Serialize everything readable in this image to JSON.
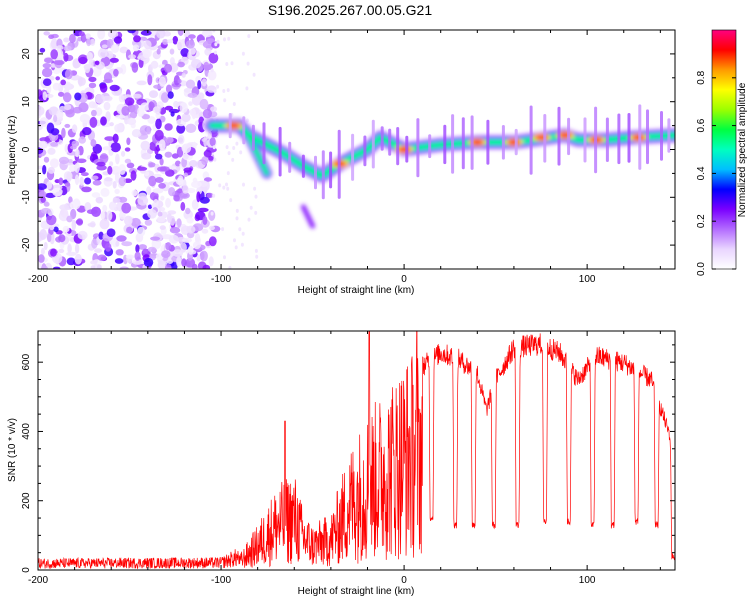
{
  "title": "S196.2025.267.00.05.G21",
  "chart_data": [
    {
      "type": "heatmap",
      "title": "S196.2025.267.00.05.G21",
      "xlabel": "Height of straight line (km)",
      "ylabel": "Frequency (Hz)",
      "xlim": [
        -200,
        148
      ],
      "ylim": [
        -25,
        25
      ],
      "xticks": [
        -200,
        -100,
        0,
        100
      ],
      "yticks": [
        -20,
        -10,
        0,
        10,
        20
      ],
      "colorbar": {
        "label": "Normalized spectral amplitude",
        "range": [
          0,
          1
        ],
        "ticks": [
          0.0,
          0.2,
          0.4,
          0.6,
          0.8
        ],
        "colors": [
          "#ffffff",
          "#e9d5ff",
          "#b36bff",
          "#7a00ff",
          "#0000ff",
          "#00bfff",
          "#00ffbf",
          "#00ff40",
          "#9cff00",
          "#ffff00",
          "#ff9a00",
          "#ff0000",
          "#ff0080"
        ]
      },
      "noise_region_x": [
        -200,
        -105
      ],
      "ridge": [
        {
          "x": -105,
          "y": 5.0
        },
        {
          "x": -90,
          "y": 5.0
        },
        {
          "x": -85,
          "y": 3.0
        },
        {
          "x": -75,
          "y": 1.0
        },
        {
          "x": -65,
          "y": -1.0
        },
        {
          "x": -55,
          "y": -3.5
        },
        {
          "x": -45,
          "y": -5.5
        },
        {
          "x": -35,
          "y": -3.0
        },
        {
          "x": -20,
          "y": 0.0
        },
        {
          "x": -13,
          "y": 2.5
        },
        {
          "x": -5,
          "y": 1.0
        },
        {
          "x": 0,
          "y": 0.0
        },
        {
          "x": 20,
          "y": 1.0
        },
        {
          "x": 40,
          "y": 1.5
        },
        {
          "x": 60,
          "y": 1.5
        },
        {
          "x": 80,
          "y": 2.5
        },
        {
          "x": 88,
          "y": 3.0
        },
        {
          "x": 95,
          "y": 2.0
        },
        {
          "x": 110,
          "y": 2.0
        },
        {
          "x": 125,
          "y": 2.5
        },
        {
          "x": 148,
          "y": 3.0
        }
      ],
      "branch": [
        {
          "x": -85,
          "y": 3.0
        },
        {
          "x": -80,
          "y": -1.0
        },
        {
          "x": -75,
          "y": -5.0
        }
      ],
      "hot_spots": [
        {
          "x": -93,
          "y": 5.0
        },
        {
          "x": -35,
          "y": -3.0
        },
        {
          "x": 0,
          "y": 0.0
        },
        {
          "x": 40,
          "y": 1.5
        },
        {
          "x": 60,
          "y": 1.5
        },
        {
          "x": 75,
          "y": 2.5
        },
        {
          "x": 88,
          "y": 3.0
        },
        {
          "x": 105,
          "y": 2.0
        },
        {
          "x": 128,
          "y": 2.5
        }
      ],
      "faint_track": [
        {
          "x": -55,
          "y": -12.0
        },
        {
          "x": -50,
          "y": -16.0
        }
      ]
    },
    {
      "type": "line",
      "xlabel": "Height of straight line (km)",
      "ylabel": "SNR (10 * v/v)",
      "xlim": [
        -200,
        148
      ],
      "ylim": [
        0,
        690
      ],
      "xticks": [
        -200,
        -100,
        0,
        100
      ],
      "yticks": [
        0,
        200,
        400,
        600
      ],
      "color": "#ff0000",
      "envelope": [
        {
          "x": -200,
          "y": 20
        },
        {
          "x": -100,
          "y": 22
        },
        {
          "x": -90,
          "y": 40
        },
        {
          "x": -80,
          "y": 120
        },
        {
          "x": -70,
          "y": 220
        },
        {
          "x": -60,
          "y": 260
        },
        {
          "x": -55,
          "y": 160
        },
        {
          "x": -50,
          "y": 120
        },
        {
          "x": -40,
          "y": 150
        },
        {
          "x": -30,
          "y": 320
        },
        {
          "x": -20,
          "y": 420
        },
        {
          "x": -10,
          "y": 480
        },
        {
          "x": 0,
          "y": 560
        },
        {
          "x": 10,
          "y": 600
        },
        {
          "x": 20,
          "y": 640
        },
        {
          "x": 30,
          "y": 620
        },
        {
          "x": 40,
          "y": 580
        },
        {
          "x": 45,
          "y": 470
        },
        {
          "x": 50,
          "y": 560
        },
        {
          "x": 60,
          "y": 655
        },
        {
          "x": 75,
          "y": 665
        },
        {
          "x": 85,
          "y": 640
        },
        {
          "x": 95,
          "y": 560
        },
        {
          "x": 105,
          "y": 630
        },
        {
          "x": 120,
          "y": 610
        },
        {
          "x": 135,
          "y": 560
        },
        {
          "x": 145,
          "y": 400
        },
        {
          "x": 148,
          "y": 200
        }
      ],
      "dips": [
        {
          "x": 15,
          "y": 140
        },
        {
          "x": 28,
          "y": 120
        },
        {
          "x": 38,
          "y": 120
        },
        {
          "x": 49,
          "y": 120
        },
        {
          "x": 62,
          "y": 120
        },
        {
          "x": 77,
          "y": 130
        },
        {
          "x": 90,
          "y": 130
        },
        {
          "x": 103,
          "y": 120
        },
        {
          "x": 114,
          "y": 120
        },
        {
          "x": 127,
          "y": 130
        },
        {
          "x": 138,
          "y": 120
        },
        {
          "x": 147,
          "y": 30
        }
      ],
      "spikes": [
        {
          "x": -65,
          "y": 430
        },
        {
          "x": -19,
          "y": 690
        },
        {
          "x": 7,
          "y": 690
        }
      ]
    }
  ]
}
